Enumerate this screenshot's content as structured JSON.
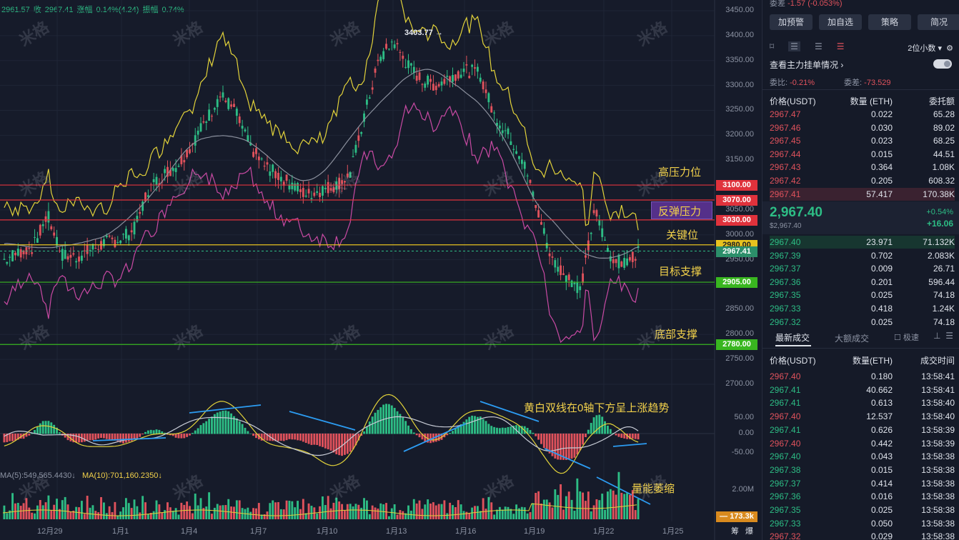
{
  "ohlc": {
    "low": "2961.57",
    "close_label": "收",
    "close": "2967.41",
    "change_label": "涨幅",
    "change": "0.14%(4.24)",
    "amp_label": "振幅",
    "amp": "0.74%"
  },
  "peak_label": "3403.77",
  "y_axis": [
    "3450.00",
    "3400.00",
    "3350.00",
    "3300.00",
    "3250.00",
    "3200.00",
    "3150.00",
    "3050.00",
    "3000.00",
    "2950.00",
    "2850.00",
    "2800.00",
    "2750.00",
    "2700.00"
  ],
  "macd_axis": [
    "50.00",
    "0.00",
    "-50.00"
  ],
  "vol_axis": "2.00M",
  "vol_current": "173.3k",
  "levels": [
    {
      "value": "3100.00",
      "color": "#e0323c",
      "text": "高压力位"
    },
    {
      "value": "3070.00",
      "color": "#e0323c",
      "text": ""
    },
    {
      "value": "3030.00",
      "color": "#e0323c",
      "text": ""
    },
    {
      "value": "2980.00",
      "color": "#e7c21f",
      "text": "关键位"
    },
    {
      "value": "2905.00",
      "color": "#39b620",
      "text": "目标支撑"
    },
    {
      "value": "2780.00",
      "color": "#39b620",
      "text": "底部支撑"
    }
  ],
  "rebound_label": "反弹压力",
  "current_price_tag": "2967.41",
  "macd_note": "黄白双线在0轴下方呈上涨趋势",
  "vol_note": "量能萎缩",
  "ma_text": {
    "ma5": "MA(5):549,565.4430↓",
    "ma10": "MA(10):701,160.2350↓"
  },
  "x_axis": [
    "12月29",
    "1月1",
    "1月4",
    "1月7",
    "1月10",
    "1月13",
    "1月16",
    "1月19",
    "1月22",
    "1月25"
  ],
  "x_extra": [
    "筹",
    "爆"
  ],
  "watermark": "米格",
  "panel": {
    "top_change": "-1.57 (-0.053%)",
    "top_change_label": "委差",
    "buttons": [
      "加预警",
      "加自选",
      "策略",
      "简况"
    ],
    "decimals": "2位小数",
    "main_orders": "查看主力挂单情况",
    "ratio_label": "委比:",
    "ratio": "-0.21%",
    "diff_label": "委差:",
    "diff": "-73.529",
    "book_headers": [
      "价格(USDT)",
      "数量 (ETH)",
      "委托额"
    ],
    "asks": [
      [
        "2967.47",
        "0.022",
        "65.28"
      ],
      [
        "2967.46",
        "0.030",
        "89.02"
      ],
      [
        "2967.45",
        "0.023",
        "68.25"
      ],
      [
        "2967.44",
        "0.015",
        "44.51"
      ],
      [
        "2967.43",
        "0.364",
        "1.08K"
      ],
      [
        "2967.42",
        "0.205",
        "608.32"
      ],
      [
        "2967.41",
        "57.417",
        "170.38K"
      ]
    ],
    "last_price": "2,967.40",
    "last_price_sub": "$2,967.40",
    "last_pct": "+0.54%",
    "last_abs": "+16.06",
    "bids": [
      [
        "2967.40",
        "23.971",
        "71.132K"
      ],
      [
        "2967.39",
        "0.702",
        "2.083K"
      ],
      [
        "2967.37",
        "0.009",
        "26.71"
      ],
      [
        "2967.36",
        "0.201",
        "596.44"
      ],
      [
        "2967.35",
        "0.025",
        "74.18"
      ],
      [
        "2967.33",
        "0.418",
        "1.24K"
      ],
      [
        "2967.32",
        "0.025",
        "74.18"
      ]
    ],
    "trade_tabs": [
      "最新成交",
      "大额成交"
    ],
    "fast_label": "极速",
    "trade_headers": [
      "价格(USDT)",
      "数量(ETH)",
      "成交时间"
    ],
    "trades": [
      [
        "2967.40",
        "0.180",
        "13:58:41",
        "r"
      ],
      [
        "2967.41",
        "40.662",
        "13:58:41",
        "g"
      ],
      [
        "2967.41",
        "0.613",
        "13:58:40",
        "g"
      ],
      [
        "2967.40",
        "12.537",
        "13:58:40",
        "r"
      ],
      [
        "2967.41",
        "0.626",
        "13:58:39",
        "g"
      ],
      [
        "2967.40",
        "0.442",
        "13:58:39",
        "r"
      ],
      [
        "2967.40",
        "0.043",
        "13:58:38",
        "g"
      ],
      [
        "2967.38",
        "0.015",
        "13:58:38",
        "g"
      ],
      [
        "2967.37",
        "0.414",
        "13:58:38",
        "g"
      ],
      [
        "2967.36",
        "0.016",
        "13:58:38",
        "g"
      ],
      [
        "2967.35",
        "0.025",
        "13:58:38",
        "g"
      ],
      [
        "2967.33",
        "0.050",
        "13:58:38",
        "g"
      ],
      [
        "2967.32",
        "0.029",
        "13:58:38",
        "r"
      ]
    ]
  },
  "chart_data": {
    "type": "candlestick",
    "x_labels": [
      "12月29",
      "1月1",
      "1月4",
      "1月7",
      "1月10",
      "1月13",
      "1月16",
      "1月19",
      "1月22",
      "1月25"
    ],
    "y_range": [
      2680,
      3460
    ],
    "close_path": [
      2950,
      2965,
      2975,
      3040,
      2960,
      2955,
      2970,
      2985,
      2990,
      3010,
      3090,
      3120,
      3140,
      3180,
      3230,
      3280,
      3250,
      3180,
      3140,
      3120,
      3100,
      3080,
      3090,
      3100,
      3120,
      3240,
      3350,
      3390,
      3340,
      3310,
      3300,
      3320,
      3330,
      3325,
      3240,
      3200,
      3150,
      3050,
      2950,
      2920,
      2890,
      3050,
      2960,
      2940,
      2967
    ]
  }
}
